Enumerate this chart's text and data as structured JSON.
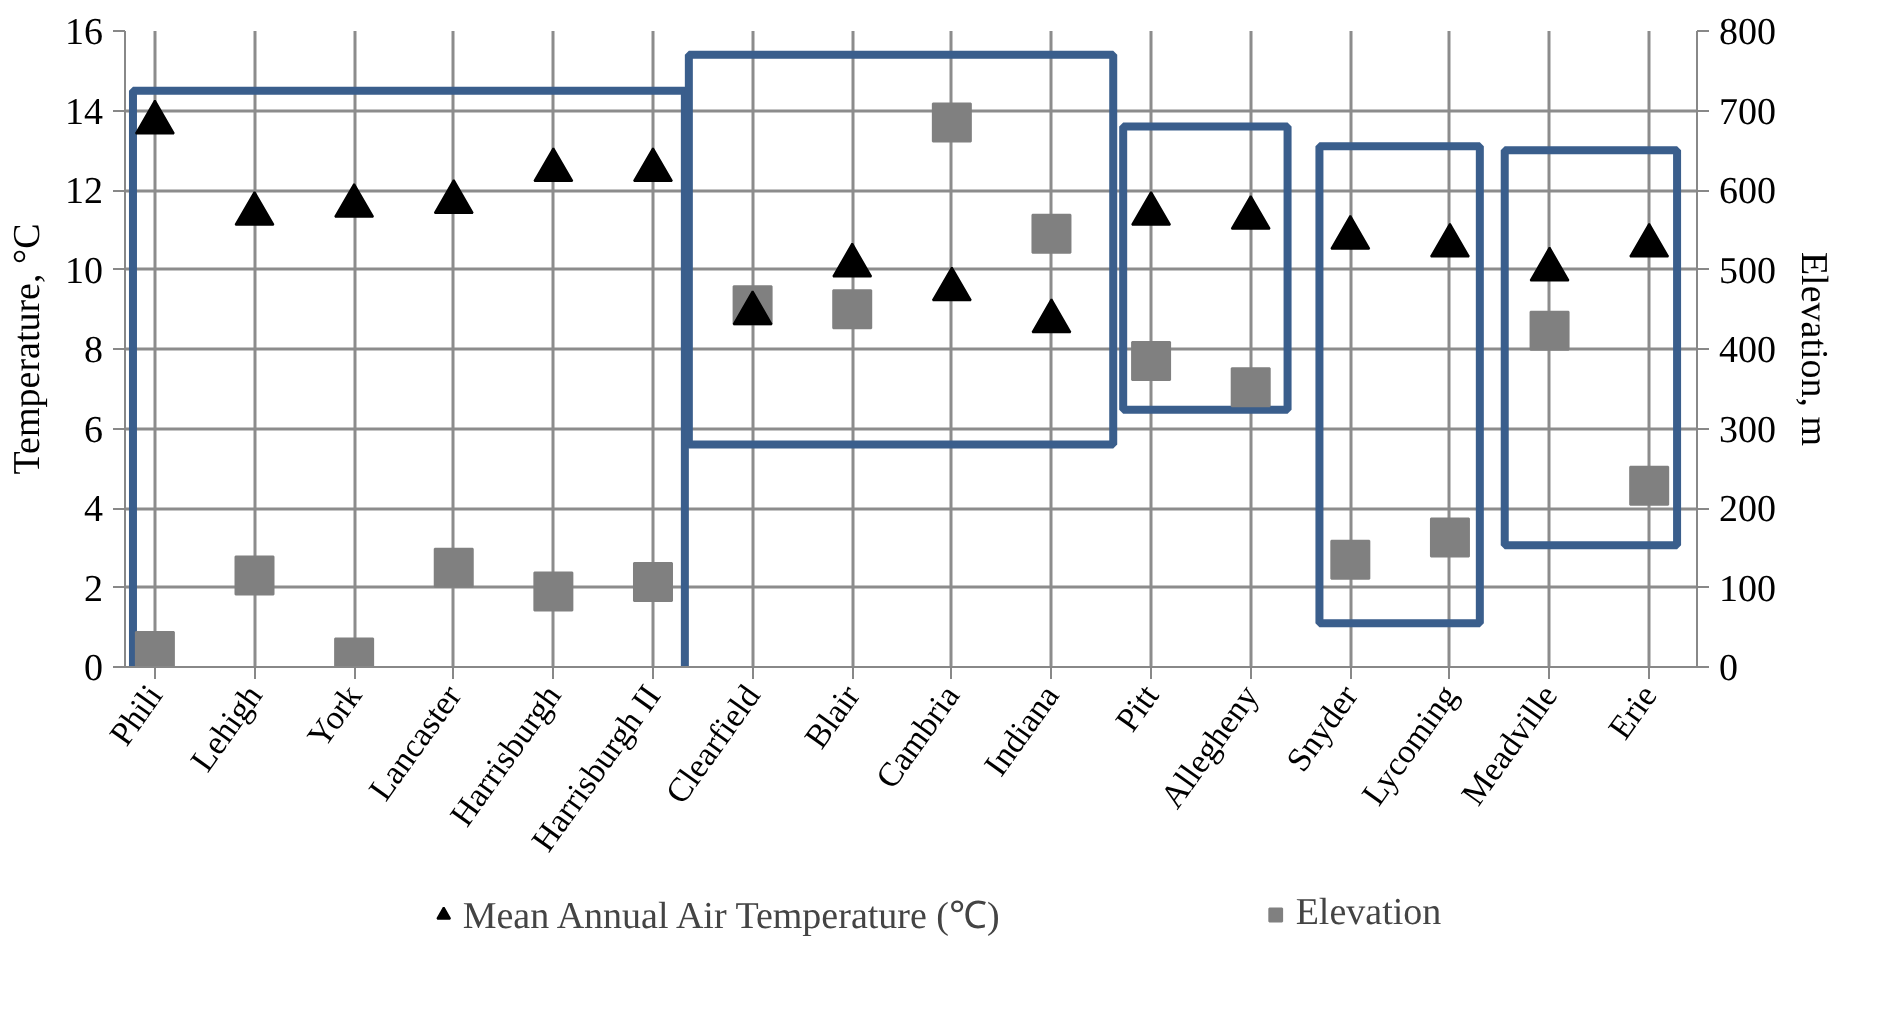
{
  "chart_data": {
    "type": "scatter",
    "categories": [
      "Phili",
      "Lehigh",
      "York",
      "Lancaster",
      "Harrisburgh",
      "Harrisburgh II",
      "Clearfield",
      "Blair",
      "Cambria",
      "Indiana",
      "Pitt",
      "Allegheny",
      "Snyder",
      "Lycoming",
      "Meadville",
      "Erie"
    ],
    "series": [
      {
        "name": "Mean Annual Air Temperature (℃)",
        "color": "#000000",
        "marker": "triangle",
        "values": [
          13.7,
          11.4,
          11.6,
          11.7,
          12.5,
          12.5,
          8.9,
          10.1,
          9.5,
          8.7,
          11.4,
          11.3,
          10.8,
          10.6,
          10.0,
          10.6
        ]
      },
      {
        "name": "Elevation",
        "color": "#808080",
        "marker": "square",
        "axis": "y2",
        "values": [
          20,
          115,
          12,
          125,
          95,
          107,
          455,
          450,
          685,
          545,
          385,
          352,
          135,
          163,
          423,
          228
        ]
      }
    ],
    "ylabel": "Temperature, °C",
    "y2label": "Elevation, m",
    "ylim": [
      0,
      16
    ],
    "yticks": [
      0,
      2,
      4,
      6,
      8,
      10,
      12,
      14,
      16
    ],
    "y2lim": [
      0,
      800
    ],
    "y2ticks": [
      0,
      100,
      200,
      300,
      400,
      500,
      600,
      700,
      800
    ],
    "grid": true,
    "legend": "bottom"
  }
}
